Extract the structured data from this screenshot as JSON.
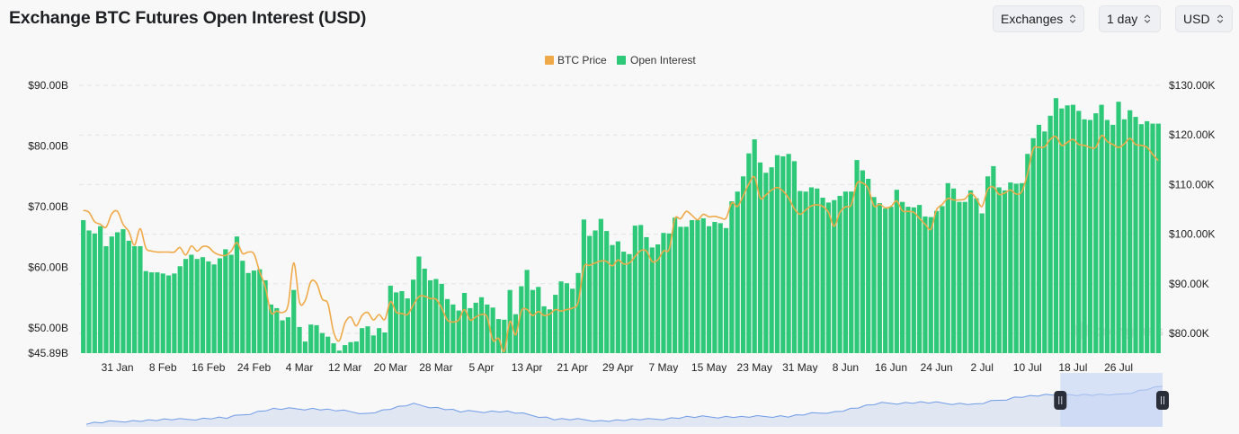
{
  "header": {
    "title": "Exchange BTC Futures Open Interest (USD)",
    "selects": [
      {
        "label": "Exchanges",
        "icon": "chevron-up-down-icon"
      },
      {
        "label": "1 day",
        "icon": "chevron-up-down-icon"
      },
      {
        "label": "USD",
        "icon": "chevron-up-down-icon"
      }
    ]
  },
  "watermark": "coinglass",
  "chart_data": {
    "type": "bar+line",
    "title": "Exchange BTC Futures Open Interest (USD)",
    "legend": {
      "placement": "top-center",
      "entries": [
        "BTC Price",
        "Open Interest"
      ]
    },
    "x": {
      "start": "25 Jan",
      "end": "2 Aug",
      "interval": "1 day"
    },
    "x_tick_labels": [
      "31 Jan",
      "8 Feb",
      "16 Feb",
      "24 Feb",
      "4 Mar",
      "12 Mar",
      "20 Mar",
      "28 Mar",
      "5 Apr",
      "13 Apr",
      "21 Apr",
      "29 Apr",
      "7 May",
      "15 May",
      "23 May",
      "31 May",
      "8 Jun",
      "16 Jun",
      "24 Jun",
      "2 Jul",
      "10 Jul",
      "18 Jul",
      "26 Jul"
    ],
    "left_axis": {
      "unit": "USD billions",
      "range": [
        45.89,
        90
      ],
      "ticks": [
        {
          "value": 90,
          "label": "$90.00B"
        },
        {
          "value": 80,
          "label": "$80.00B"
        },
        {
          "value": 70,
          "label": "$70.00B"
        },
        {
          "value": 60,
          "label": "$60.00B"
        },
        {
          "value": 50,
          "label": "$50.00B"
        },
        {
          "value": 45.89,
          "label": "$45.89B"
        }
      ]
    },
    "right_axis": {
      "unit": "USD thousands",
      "range": [
        76,
        130
      ],
      "ticks": [
        {
          "value": 130,
          "label": "$130.00K"
        },
        {
          "value": 120,
          "label": "$120.00K"
        },
        {
          "value": 110,
          "label": "$110.00K"
        },
        {
          "value": 100,
          "label": "$100.00K"
        },
        {
          "value": 90,
          "label": "$90.00K"
        },
        {
          "value": 80,
          "label": "$80.00K"
        }
      ]
    },
    "grid": "horizontal dashed",
    "series": [
      {
        "name": "Open Interest",
        "type": "bar",
        "axis": "left",
        "color": "#2dc878",
        "values": [
          67.8,
          66.1,
          65.6,
          66.8,
          63.5,
          65.1,
          65.8,
          66.3,
          64.4,
          63.5,
          63.5,
          59.4,
          59.2,
          59.2,
          59.0,
          58.7,
          59.0,
          60.2,
          61.4,
          62.1,
          61.4,
          61.7,
          61.0,
          60.5,
          61.5,
          63.0,
          62.1,
          65.1,
          61.1,
          59.1,
          59.5,
          59.7,
          57.9,
          53.9,
          53.3,
          51.3,
          51.8,
          56.3,
          50.2,
          47.8,
          50.6,
          50.5,
          49.2,
          48.6,
          47.5,
          46.3,
          47.2,
          47.7,
          47.8,
          50.0,
          50.3,
          48.8,
          50.0,
          49.3,
          57.0,
          55.9,
          56.1,
          54.9,
          58.0,
          61.8,
          59.8,
          57.9,
          58.1,
          57.3,
          54.8,
          53.9,
          52.9,
          55.8,
          53.3,
          54.2,
          55.1,
          53.9,
          53.4,
          51.5,
          51.4,
          56.3,
          52.3,
          56.9,
          59.6,
          56.3,
          56.8,
          53.6,
          53.1,
          55.5,
          57.7,
          57.4,
          56.5,
          59.1,
          67.9,
          65.2,
          66.1,
          68.0,
          66.0,
          63.7,
          64.3,
          62.6,
          62.2,
          66.9,
          67.0,
          65.0,
          63.3,
          63.8,
          65.7,
          65.6,
          68.2,
          66.7,
          66.7,
          67.8,
          67.8,
          68.1,
          66.8,
          67.5,
          67.3,
          66.5,
          70.9,
          72.5,
          75.0,
          78.8,
          81.1,
          77.3,
          75.6,
          76.5,
          78.5,
          78.3,
          78.7,
          77.5,
          72.6,
          72.5,
          73.2,
          73.0,
          71.5,
          70.7,
          71.1,
          71.8,
          72.5,
          72.5,
          77.7,
          76.0,
          74.6,
          71.6,
          70.6,
          69.7,
          70.0,
          72.8,
          70.8,
          70.0,
          69.9,
          70.3,
          68.4,
          68.3,
          69.3,
          70.1,
          73.9,
          73.0,
          70.8,
          70.8,
          72.7,
          71.4,
          68.9,
          75.0,
          76.7,
          73.2,
          72.7,
          74.0,
          73.8,
          73.9,
          78.7,
          81.3,
          83.5,
          82.4,
          85.0,
          87.9,
          86.2,
          86.7,
          86.8,
          85.8,
          84.4,
          84.3,
          85.4,
          86.8,
          84.3,
          83.5,
          87.3,
          84.4,
          85.9,
          84.8,
          83.6,
          84.1,
          83.7,
          83.7
        ]
      },
      {
        "name": "BTC Price",
        "type": "line",
        "axis": "right",
        "color": "#f0a948",
        "values": [
          104.8,
          104.4,
          102.5,
          102.0,
          101.4,
          104.1,
          104.6,
          102.0,
          100.5,
          97.8,
          101.1,
          97.2,
          96.6,
          96.4,
          96.4,
          96.4,
          96.4,
          97.3,
          95.8,
          97.6,
          96.6,
          97.5,
          97.4,
          96.3,
          95.8,
          95.7,
          96.6,
          98.3,
          96.1,
          96.4,
          96.0,
          92.4,
          89.3,
          84.2,
          84.5,
          84.2,
          85.7,
          94.2,
          86.3,
          86.6,
          90.4,
          90.1,
          86.9,
          86.0,
          80.3,
          78.5,
          82.1,
          83.3,
          81.5,
          83.6,
          84.2,
          82.7,
          83.8,
          82.8,
          86.4,
          84.3,
          84.0,
          83.8,
          85.7,
          87.4,
          87.5,
          87.0,
          86.9,
          85.1,
          82.7,
          82.3,
          82.7,
          84.8,
          82.7,
          83.3,
          83.8,
          83.3,
          78.6,
          79.0,
          76.4,
          82.4,
          79.7,
          84.5,
          84.8,
          83.6,
          84.4,
          83.6,
          83.9,
          84.8,
          84.5,
          84.8,
          85.1,
          86.3,
          93.3,
          93.7,
          94.2,
          94.6,
          94.5,
          93.6,
          94.8,
          94.0,
          94.2,
          95.5,
          96.7,
          96.6,
          94.5,
          94.8,
          96.6,
          97.0,
          103.1,
          103.1,
          104.6,
          103.8,
          102.9,
          104.0,
          103.5,
          103.6,
          103.3,
          103.2,
          106.3,
          105.6,
          107.7,
          110.1,
          111.5,
          107.3,
          107.9,
          108.9,
          109.4,
          108.7,
          107.3,
          105.1,
          104.0,
          104.9,
          105.7,
          105.9,
          105.6,
          104.4,
          101.6,
          104.4,
          105.5,
          105.9,
          110.2,
          110.3,
          109.2,
          105.7,
          106.0,
          105.3,
          105.6,
          106.7,
          104.7,
          104.6,
          104.4,
          103.2,
          102.0,
          101.0,
          104.9,
          106.0,
          107.2,
          106.9,
          106.9,
          107.1,
          108.3,
          107.2,
          105.6,
          109.0,
          109.5,
          108.0,
          108.3,
          108.9,
          108.1,
          108.6,
          112.2,
          117.2,
          117.5,
          117.6,
          119.1,
          119.7,
          117.9,
          118.5,
          119.1,
          118.1,
          117.9,
          117.5,
          117.5,
          119.9,
          118.7,
          118.1,
          117.5,
          118.2,
          119.3,
          118.1,
          117.9,
          117.5,
          116.1,
          114.8
        ]
      }
    ],
    "navigator": {
      "line_color": "#6f9be8",
      "selected_range_fraction": [
        0.905,
        1.0
      ],
      "overview_levels": [
        0.08,
        0.14,
        0.16,
        0.2,
        0.4,
        0.4,
        0.3,
        0.5,
        0.34,
        0.34,
        0.18,
        0.14,
        0.16,
        0.22,
        0.22,
        0.24,
        0.34,
        0.52,
        0.54,
        0.5,
        0.68,
        0.72,
        0.7,
        0.9
      ]
    }
  }
}
